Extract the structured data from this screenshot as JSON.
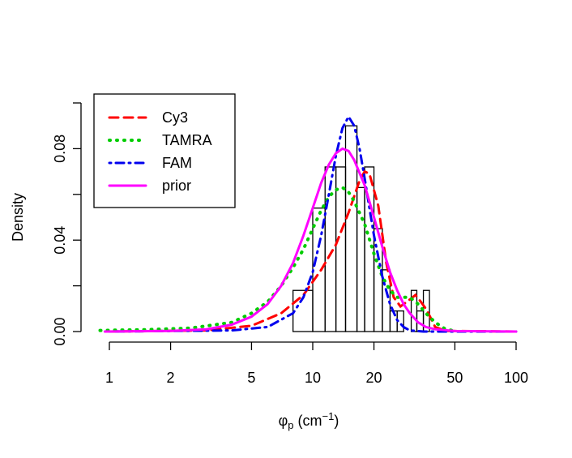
{
  "chart_data": {
    "type": "histogram+density",
    "title": "",
    "xlabel": {
      "main": "φ",
      "sub": "p",
      "unit_open": " (cm",
      "sup": "−1",
      "unit_close": ")"
    },
    "ylabel": "Density",
    "x_scale": "log",
    "xlim": [
      0.85,
      100
    ],
    "ylim": [
      0,
      0.1
    ],
    "x_ticks": [
      1,
      2,
      5,
      10,
      20,
      50,
      100
    ],
    "x_tick_labels": [
      "1",
      "2",
      "5",
      "10",
      "20",
      "50",
      "100"
    ],
    "y_ticks": [
      0,
      0.02,
      0.04,
      0.06,
      0.08,
      0.1
    ],
    "y_tick_labels": [
      "0.00",
      "",
      "0.04",
      "",
      "0.08",
      ""
    ],
    "grid": false,
    "legend_position": "top-left",
    "histogram": {
      "bins": [
        {
          "x0": 8.0,
          "x1": 10.0,
          "density": 0.018
        },
        {
          "x0": 10.0,
          "x1": 11.5,
          "density": 0.054
        },
        {
          "x0": 11.5,
          "x1": 13.0,
          "density": 0.072
        },
        {
          "x0": 13.0,
          "x1": 14.5,
          "density": 0.072
        },
        {
          "x0": 14.5,
          "x1": 16.5,
          "density": 0.09
        },
        {
          "x0": 16.5,
          "x1": 18.0,
          "density": 0.063
        },
        {
          "x0": 18.0,
          "x1": 20.0,
          "density": 0.072
        },
        {
          "x0": 20.0,
          "x1": 22.0,
          "density": 0.045
        },
        {
          "x0": 22.0,
          "x1": 24.0,
          "density": 0.027
        },
        {
          "x0": 24.0,
          "x1": 26.0,
          "density": 0.009
        },
        {
          "x0": 26.0,
          "x1": 28.0,
          "density": 0.009
        },
        {
          "x0": 28.0,
          "x1": 30.5,
          "density": 0.0
        },
        {
          "x0": 30.5,
          "x1": 32.5,
          "density": 0.018
        },
        {
          "x0": 32.5,
          "x1": 35.0,
          "density": 0.009
        },
        {
          "x0": 35.0,
          "x1": 37.5,
          "density": 0.018
        }
      ]
    },
    "series": [
      {
        "name": "Cy3",
        "color": "#ff0000",
        "dash": "dashed",
        "points": [
          [
            1,
            0
          ],
          [
            3,
            0.0005
          ],
          [
            5,
            0.0025
          ],
          [
            7,
            0.008
          ],
          [
            9,
            0.016
          ],
          [
            11,
            0.027
          ],
          [
            13,
            0.038
          ],
          [
            15,
            0.052
          ],
          [
            17,
            0.066
          ],
          [
            18,
            0.07
          ],
          [
            19,
            0.069
          ],
          [
            21,
            0.055
          ],
          [
            23,
            0.03
          ],
          [
            25,
            0.015
          ],
          [
            27,
            0.011
          ],
          [
            28,
            0.012
          ],
          [
            30,
            0.014
          ],
          [
            32,
            0.016
          ],
          [
            34,
            0.013
          ],
          [
            36,
            0.01
          ],
          [
            38,
            0.006
          ],
          [
            40,
            0.002
          ],
          [
            45,
            0.0003
          ],
          [
            100,
            0
          ]
        ]
      },
      {
        "name": "TAMRA",
        "color": "#00cc00",
        "dash": "dotted",
        "points": [
          [
            0.9,
            0.0005
          ],
          [
            1.5,
            0.0008
          ],
          [
            2.5,
            0.0015
          ],
          [
            4,
            0.004
          ],
          [
            5,
            0.008
          ],
          [
            6,
            0.013
          ],
          [
            7,
            0.02
          ],
          [
            8,
            0.028
          ],
          [
            9,
            0.036
          ],
          [
            10,
            0.045
          ],
          [
            11,
            0.053
          ],
          [
            12,
            0.059
          ],
          [
            13,
            0.062
          ],
          [
            14,
            0.063
          ],
          [
            15,
            0.061
          ],
          [
            16,
            0.057
          ],
          [
            18,
            0.047
          ],
          [
            20,
            0.034
          ],
          [
            22,
            0.024
          ],
          [
            24,
            0.018
          ],
          [
            26,
            0.015
          ],
          [
            28,
            0.015
          ],
          [
            30,
            0.015
          ],
          [
            33,
            0.012
          ],
          [
            36,
            0.008
          ],
          [
            40,
            0.004
          ],
          [
            45,
            0.001
          ],
          [
            50,
            0.0003
          ]
        ]
      },
      {
        "name": "FAM",
        "color": "#0000ee",
        "dash": "dotdash",
        "points": [
          [
            1,
            0
          ],
          [
            4,
            0.0005
          ],
          [
            6,
            0.002
          ],
          [
            8,
            0.008
          ],
          [
            9,
            0.015
          ],
          [
            10,
            0.026
          ],
          [
            11,
            0.042
          ],
          [
            12,
            0.06
          ],
          [
            13,
            0.077
          ],
          [
            14,
            0.089
          ],
          [
            15,
            0.094
          ],
          [
            16,
            0.09
          ],
          [
            17,
            0.08
          ],
          [
            18,
            0.067
          ],
          [
            19,
            0.054
          ],
          [
            20,
            0.042
          ],
          [
            22,
            0.024
          ],
          [
            24,
            0.012
          ],
          [
            26,
            0.005
          ],
          [
            28,
            0.002
          ],
          [
            30,
            0.0005
          ],
          [
            35,
            0
          ],
          [
            100,
            0
          ]
        ]
      },
      {
        "name": "prior",
        "color": "#ff00ff",
        "dash": "solid",
        "points": [
          [
            0.95,
            0
          ],
          [
            2,
            0.0003
          ],
          [
            3,
            0.001
          ],
          [
            4,
            0.003
          ],
          [
            5,
            0.0065
          ],
          [
            6,
            0.012
          ],
          [
            7,
            0.02
          ],
          [
            8,
            0.03
          ],
          [
            9,
            0.042
          ],
          [
            10,
            0.054
          ],
          [
            11,
            0.065
          ],
          [
            12,
            0.073
          ],
          [
            13,
            0.078
          ],
          [
            14,
            0.08
          ],
          [
            15,
            0.079
          ],
          [
            16,
            0.075
          ],
          [
            18,
            0.064
          ],
          [
            20,
            0.05
          ],
          [
            22,
            0.037
          ],
          [
            24,
            0.026
          ],
          [
            26,
            0.018
          ],
          [
            28,
            0.012
          ],
          [
            30,
            0.008
          ],
          [
            33,
            0.004
          ],
          [
            36,
            0.002
          ],
          [
            40,
            0.001
          ],
          [
            50,
            0.0002
          ],
          [
            100,
            0
          ]
        ]
      }
    ]
  }
}
